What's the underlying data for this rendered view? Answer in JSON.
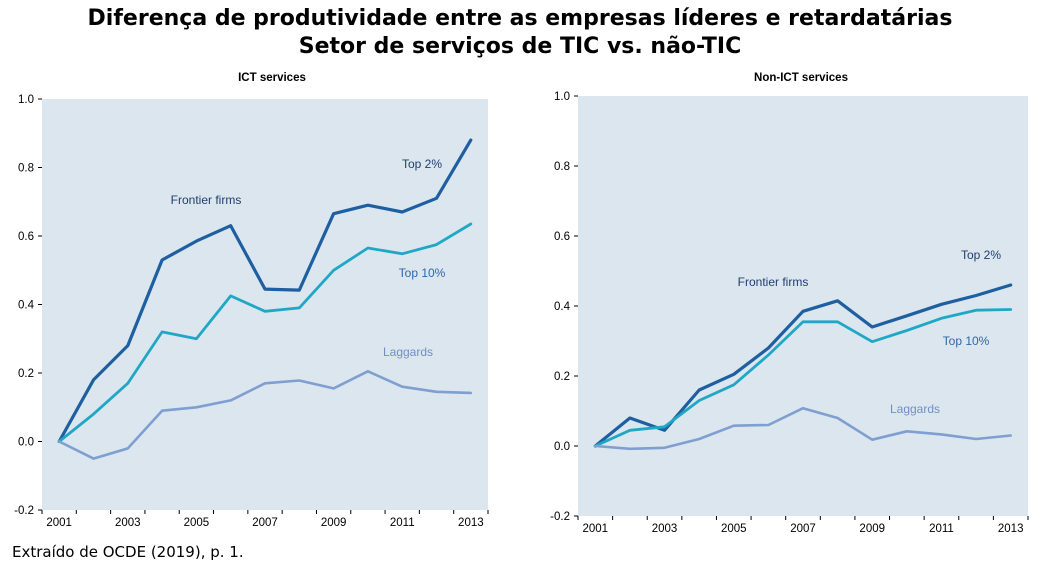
{
  "title": "Diferença de produtividade entre as empresas líderes e retardatárias",
  "subtitle": "Setor de serviços de TIC vs. não-TIC",
  "source": "Extraído de OCDE (2019), p. 1.",
  "colors": {
    "plot_bg": "#dce6ef",
    "top2": "#1d5fa0",
    "top10": "#21a7c6",
    "laggards": "#7e9fd0",
    "label_dark": "#1f3e6e",
    "label_mid": "#2e67a8",
    "label_light": "#6f8fc8"
  },
  "chart_data": [
    {
      "type": "line",
      "title": "ICT services",
      "x": [
        2001,
        2002,
        2003,
        2004,
        2005,
        2006,
        2007,
        2008,
        2009,
        2010,
        2011,
        2012,
        2013
      ],
      "xticks": [
        "2001",
        "2003",
        "2005",
        "2007",
        "2009",
        "2011",
        "2013"
      ],
      "yticks": [
        "1.0",
        "0.8",
        "0.6",
        "0.4",
        "0.2",
        "0.0",
        "-0.2"
      ],
      "xlim": [
        2000.5,
        2013.5
      ],
      "ylim": [
        -0.2,
        1.0
      ],
      "grid": false,
      "series": [
        {
          "name": "Top 2%",
          "values": [
            0.0,
            0.18,
            0.28,
            0.53,
            0.585,
            0.63,
            0.445,
            0.442,
            0.665,
            0.69,
            0.67,
            0.71,
            0.88
          ]
        },
        {
          "name": "Top 10%",
          "values": [
            0.0,
            0.08,
            0.17,
            0.32,
            0.3,
            0.425,
            0.38,
            0.39,
            0.5,
            0.565,
            0.548,
            0.575,
            0.635
          ]
        },
        {
          "name": "Laggards",
          "values": [
            0.0,
            -0.05,
            -0.02,
            0.09,
            0.1,
            0.12,
            0.17,
            0.178,
            0.155,
            0.205,
            0.16,
            0.145,
            0.142
          ]
        }
      ],
      "annotations": [
        "Frontier firms",
        "Top 2%",
        "Top 10%",
        "Laggards"
      ]
    },
    {
      "type": "line",
      "title": "Non-ICT services",
      "x": [
        2001,
        2002,
        2003,
        2004,
        2005,
        2006,
        2007,
        2008,
        2009,
        2010,
        2011,
        2012,
        2013
      ],
      "xticks": [
        "2001",
        "2003",
        "2005",
        "2007",
        "2009",
        "2011",
        "2013"
      ],
      "yticks": [
        "1.0",
        "0.8",
        "0.6",
        "0.4",
        "0.2",
        "0.0",
        "-0.2"
      ],
      "xlim": [
        2000.5,
        2013.5
      ],
      "ylim": [
        -0.2,
        1.0
      ],
      "grid": false,
      "series": [
        {
          "name": "Top 2%",
          "values": [
            0.0,
            0.08,
            0.045,
            0.16,
            0.205,
            0.28,
            0.385,
            0.415,
            0.34,
            0.372,
            0.405,
            0.43,
            0.46
          ]
        },
        {
          "name": "Top 10%",
          "values": [
            0.0,
            0.045,
            0.055,
            0.13,
            0.175,
            0.26,
            0.355,
            0.355,
            0.298,
            0.33,
            0.365,
            0.388,
            0.39
          ]
        },
        {
          "name": "Laggards",
          "values": [
            0.0,
            -0.008,
            -0.005,
            0.02,
            0.058,
            0.06,
            0.108,
            0.08,
            0.018,
            0.042,
            0.033,
            0.02,
            0.03
          ]
        }
      ],
      "annotations": [
        "Frontier firms",
        "Top 2%",
        "Top 10%",
        "Laggards"
      ]
    }
  ]
}
